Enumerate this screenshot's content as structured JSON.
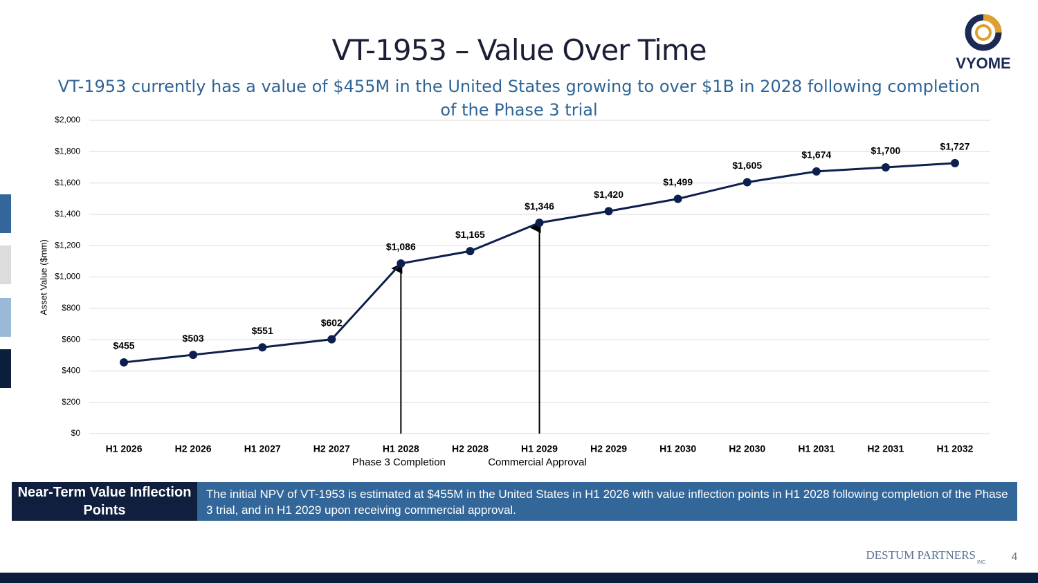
{
  "header": {
    "title": "VT-1953 – Value Over Time",
    "subtitle": "VT-1953 currently has a value of $455M in the United States growing to over $1B in 2028 following completion of the Phase 3 trial",
    "logo": "VYOME"
  },
  "chart_data": {
    "type": "line",
    "y_label": "Asset Value ($mm)",
    "categories": [
      "H1 2026",
      "H2 2026",
      "H1 2027",
      "H2 2027",
      "H1 2028",
      "H2 2028",
      "H1 2029",
      "H2 2029",
      "H1 2030",
      "H2 2030",
      "H1 2031",
      "H2 2031",
      "H1 2032"
    ],
    "values": [
      455,
      503,
      551,
      602,
      1086,
      1165,
      1346,
      1420,
      1499,
      1605,
      1674,
      1700,
      1727
    ],
    "value_labels": [
      "$455",
      "$503",
      "$551",
      "$602",
      "$1,086",
      "$1,165",
      "$1,346",
      "$1,420",
      "$1,499",
      "$1,605",
      "$1,674",
      "$1,700",
      "$1,727"
    ],
    "color": "#0d1f4e",
    "ylim": [
      0,
      2000
    ],
    "yticks": [
      {
        "value": 0,
        "label": "$0"
      },
      {
        "value": 200,
        "label": "$200"
      },
      {
        "value": 400,
        "label": "$400"
      },
      {
        "value": 600,
        "label": "$600"
      },
      {
        "value": 800,
        "label": "$800"
      },
      {
        "value": 1000,
        "label": "$1,000"
      },
      {
        "value": 1200,
        "label": "$1,200"
      },
      {
        "value": 1400,
        "label": "$1,400"
      },
      {
        "value": 1600,
        "label": "$1,600"
      },
      {
        "value": 1800,
        "label": "$1,800"
      },
      {
        "value": 2000,
        "label": "$2,000"
      }
    ],
    "grid": true,
    "annotations": [
      {
        "x": "H1 2028",
        "text": "Phase 3 Completion"
      },
      {
        "x": "H1 2029",
        "text": "Commercial Approval"
      }
    ]
  },
  "callout": {
    "heading": "Near-Term Value Inflection Points",
    "text": "The initial NPV of VT-1953 is estimated at $455M in the United States in H1 2026 with value inflection points in H1 2028 following completion of the Phase 3 trial, and in H1 2029 upon receiving commercial approval."
  },
  "footer": {
    "brand": "DESTUM PARTNERS",
    "brand_suffix": "INC.",
    "page": "4"
  }
}
